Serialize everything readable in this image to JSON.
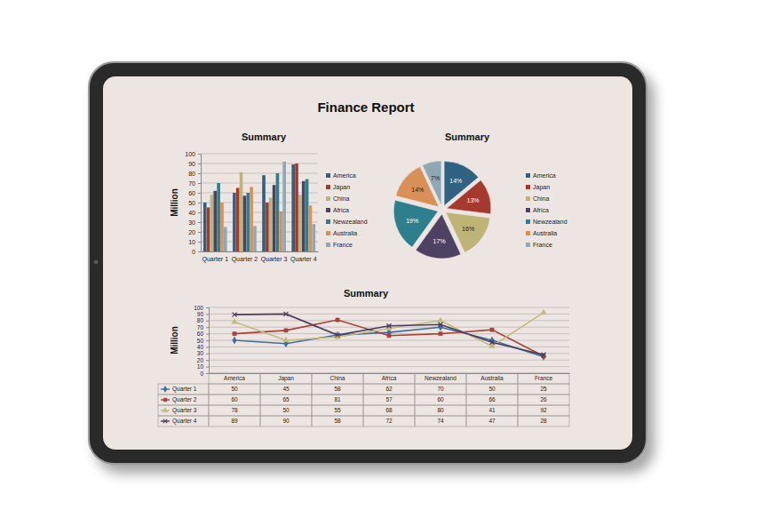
{
  "header": {
    "title": "Finance Report"
  },
  "chart_data": [
    {
      "type": "bar",
      "title": "Summary",
      "y_label": "Million",
      "categories": [
        "Quarter 1",
        "Quarter 2",
        "Quarter 3",
        "Quarter 4"
      ],
      "series": [
        {
          "name": "America",
          "color": "#2f6183",
          "values": [
            50,
            60,
            78,
            89
          ]
        },
        {
          "name": "Japan",
          "color": "#a5392e",
          "values": [
            45,
            65,
            50,
            90
          ]
        },
        {
          "name": "China",
          "color": "#bdb476",
          "values": [
            58,
            81,
            55,
            58
          ]
        },
        {
          "name": "Africa",
          "color": "#4d4261",
          "values": [
            62,
            57,
            68,
            72
          ]
        },
        {
          "name": "Newzealand",
          "color": "#2e7f8c",
          "values": [
            70,
            60,
            80,
            74
          ]
        },
        {
          "name": "Australia",
          "color": "#d99058",
          "values": [
            50,
            66,
            41,
            47
          ]
        },
        {
          "name": "France",
          "color": "#8fa8b6",
          "values": [
            25,
            26,
            92,
            28
          ]
        }
      ],
      "ylim": [
        0,
        100
      ],
      "yticks": [
        0,
        10,
        20,
        30,
        40,
        50,
        60,
        70,
        80,
        90,
        100
      ],
      "grid": true,
      "legend": "right"
    },
    {
      "type": "pie",
      "title": "Summary",
      "categories": [
        "America",
        "Japan",
        "China",
        "Africa",
        "Newzealand",
        "Australia",
        "France"
      ],
      "values": [
        14,
        13,
        16,
        17,
        19,
        14,
        7
      ],
      "value_labels": [
        "14%",
        "13%",
        "16%",
        "17%",
        "19%",
        "14%",
        "7%"
      ],
      "colors": [
        "#2f6183",
        "#a5392e",
        "#bdb476",
        "#4d4261",
        "#2e7f8c",
        "#d99058",
        "#8fa8b6"
      ],
      "data_labels": true,
      "legend": "right"
    },
    {
      "type": "line",
      "title": "Summary",
      "y_label": "Million",
      "categories": [
        "America",
        "Japan",
        "China",
        "Africa",
        "Newzealand",
        "Australia",
        "France"
      ],
      "series": [
        {
          "name": "Quarter 1",
          "color": "#3d6e9c",
          "marker": "diamond",
          "values": [
            50,
            45,
            58,
            62,
            70,
            50,
            25
          ]
        },
        {
          "name": "Quarter 2",
          "color": "#a8423a",
          "marker": "square",
          "values": [
            60,
            65,
            81,
            57,
            60,
            66,
            26
          ]
        },
        {
          "name": "Quarter 3",
          "color": "#c4b97e",
          "marker": "triangle",
          "values": [
            78,
            50,
            55,
            68,
            80,
            41,
            92
          ]
        },
        {
          "name": "Quarter 4",
          "color": "#4b3d5f",
          "marker": "x",
          "values": [
            89,
            90,
            58,
            72,
            74,
            47,
            28
          ]
        }
      ],
      "ylim": [
        0,
        100
      ],
      "yticks": [
        0,
        10,
        20,
        30,
        40,
        50,
        60,
        70,
        80,
        90,
        100
      ],
      "grid": true,
      "legend": "bottom"
    }
  ]
}
